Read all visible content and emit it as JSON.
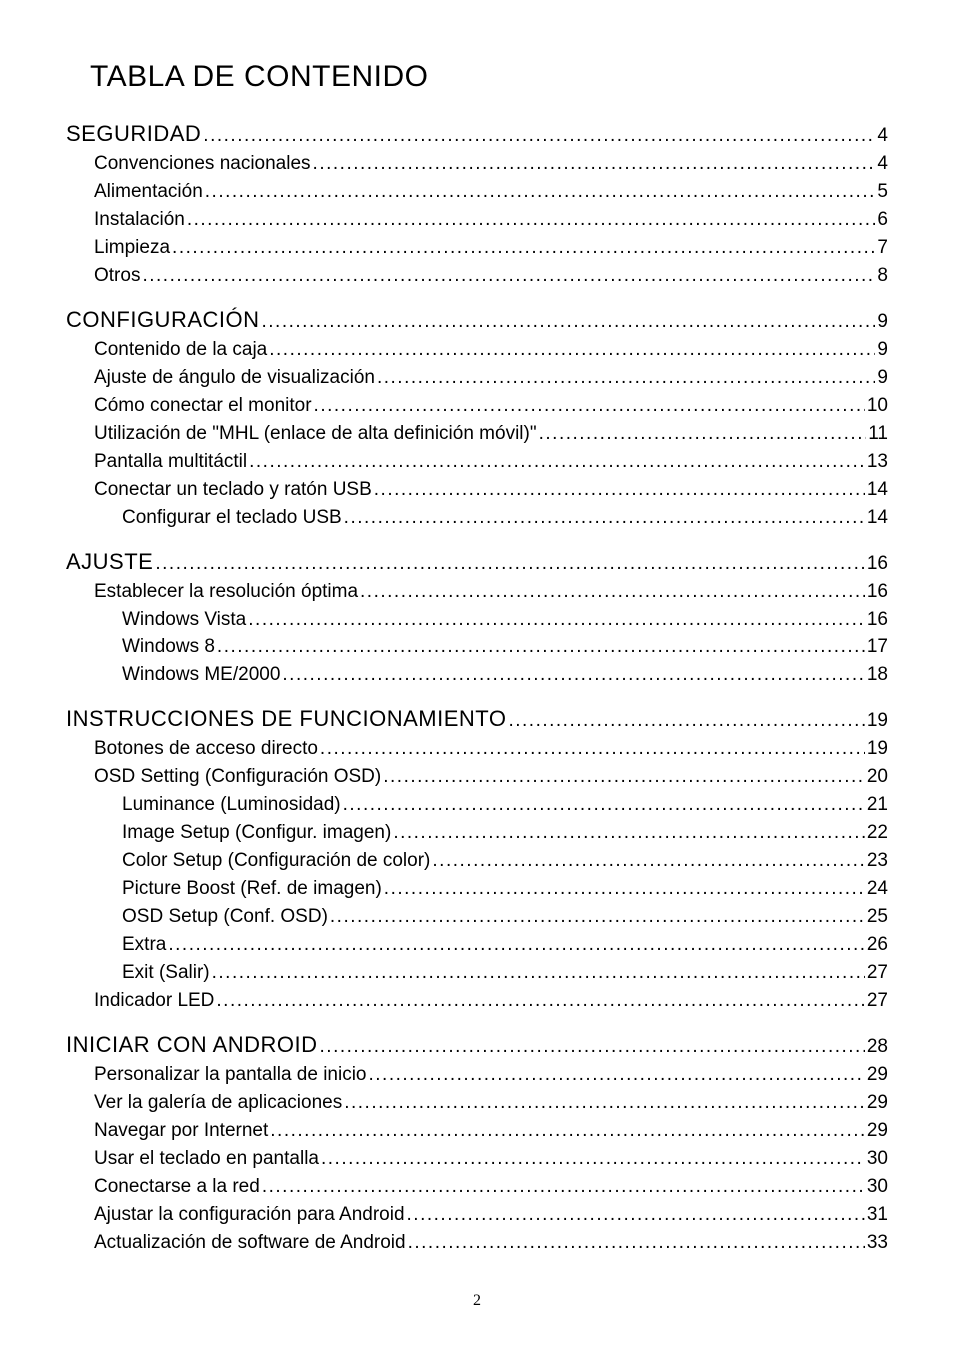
{
  "title": "TABLA DE CONTENIDO",
  "page_number": "2",
  "toc": [
    {
      "level": 0,
      "label": "SEGURIDAD",
      "pagenum": "4"
    },
    {
      "level": 1,
      "label": "Convenciones nacionales",
      "pagenum": "4"
    },
    {
      "level": 1,
      "label": "Alimentación",
      "pagenum": "5"
    },
    {
      "level": 1,
      "label": "Instalación ",
      "pagenum": "6"
    },
    {
      "level": 1,
      "label": "Limpieza",
      "pagenum": "7"
    },
    {
      "level": 1,
      "label": "Otros",
      "pagenum": "8"
    },
    {
      "level": 0,
      "label": "CONFIGURACIÓN",
      "pagenum": "9"
    },
    {
      "level": 1,
      "label": "Contenido de la caja",
      "pagenum": "9"
    },
    {
      "level": 1,
      "label": "Ajuste de ángulo de visualización",
      "pagenum": "9"
    },
    {
      "level": 1,
      "label": "Cómo conectar el monitor",
      "pagenum": "10"
    },
    {
      "level": 1,
      "label": "Utilización de \"MHL (enlace de alta definición móvil)\"",
      "pagenum": "11"
    },
    {
      "level": 1,
      "label": "Pantalla multitáctil",
      "pagenum": "13"
    },
    {
      "level": 1,
      "label": "Conectar un teclado y ratón USB",
      "pagenum": "14"
    },
    {
      "level": 2,
      "label": "Configurar el teclado USB",
      "pagenum": "14"
    },
    {
      "level": 0,
      "label": "AJUSTE",
      "pagenum": "16"
    },
    {
      "level": 1,
      "label": "Establecer la resolución óptima",
      "pagenum": "16"
    },
    {
      "level": 2,
      "label": "Windows Vista",
      "pagenum": "16"
    },
    {
      "level": 2,
      "label": "Windows 8",
      "pagenum": "17"
    },
    {
      "level": 2,
      "label": "Windows ME/2000",
      "pagenum": "18"
    },
    {
      "level": 0,
      "label": "INSTRUCCIONES DE FUNCIONAMIENTO",
      "pagenum": "19"
    },
    {
      "level": 1,
      "label": "Botones de acceso directo",
      "pagenum": "19"
    },
    {
      "level": 1,
      "label": "OSD Setting (Configuración OSD)",
      "pagenum": "20"
    },
    {
      "level": 2,
      "label": "Luminance (Luminosidad)",
      "pagenum": "21"
    },
    {
      "level": 2,
      "label": "Image Setup (Configur. imagen)",
      "pagenum": "22"
    },
    {
      "level": 2,
      "label": "Color Setup (Configuración de color)",
      "pagenum": "23"
    },
    {
      "level": 2,
      "label": "Picture Boost (Ref. de imagen)",
      "pagenum": "24"
    },
    {
      "level": 2,
      "label": "OSD Setup (Conf. OSD)",
      "pagenum": "25"
    },
    {
      "level": 2,
      "label": "Extra",
      "pagenum": "26"
    },
    {
      "level": 2,
      "label": "Exit (Salir)",
      "pagenum": "27"
    },
    {
      "level": 1,
      "label": "Indicador LED",
      "pagenum": "27"
    },
    {
      "level": 0,
      "label": "INICIAR CON ANDROID",
      "pagenum": "28"
    },
    {
      "level": 1,
      "label": "Personalizar la pantalla de inicio",
      "pagenum": "29"
    },
    {
      "level": 1,
      "label": "Ver la galería de aplicaciones",
      "pagenum": "29"
    },
    {
      "level": 1,
      "label": "Navegar por Internet",
      "pagenum": "29"
    },
    {
      "level": 1,
      "label": "Usar el teclado en pantalla",
      "pagenum": "30"
    },
    {
      "level": 1,
      "label": "Conectarse a la red",
      "pagenum": "30"
    },
    {
      "level": 1,
      "label": "Ajustar la configuración para Android",
      "pagenum": "31"
    },
    {
      "level": 1,
      "label": "Actualización de software de Android",
      "pagenum": "33"
    }
  ],
  "colors": {
    "background": "#ffffff",
    "text": "#000000"
  },
  "typography": {
    "title_fontsize": 30,
    "section_fontsize": 22,
    "body_fontsize": 19,
    "footer_fontsize": 16,
    "font_family": "Gill Sans",
    "footer_font_family": "Times New Roman"
  }
}
